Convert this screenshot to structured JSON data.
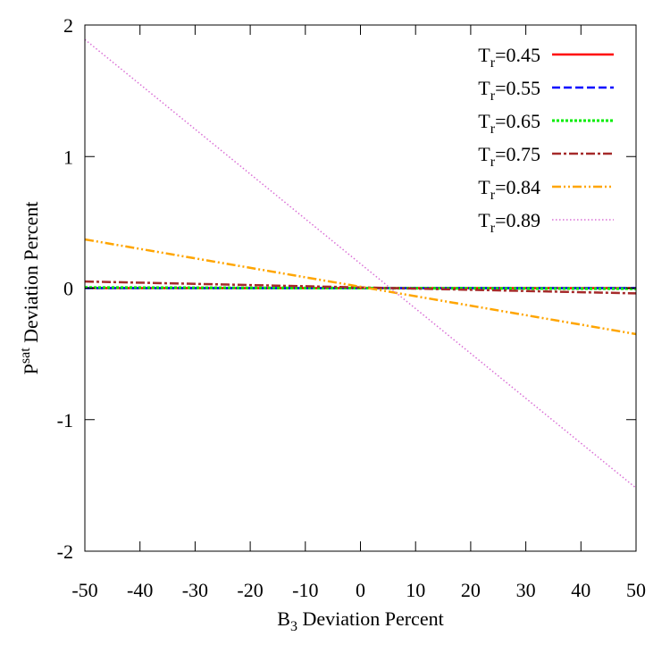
{
  "chart_data": {
    "type": "line",
    "title": "",
    "xlabel": {
      "main": "B",
      "sub": "3",
      "rest": " Deviation Percent"
    },
    "ylabel": {
      "main": "P",
      "sup": "sat",
      "rest": " Deviation Percent"
    },
    "xlim": [
      -50,
      50
    ],
    "ylim": [
      -2,
      2
    ],
    "xticks": [
      -50,
      -40,
      -30,
      -20,
      -10,
      0,
      10,
      20,
      30,
      40,
      50
    ],
    "yticks": [
      -2,
      -1,
      0,
      1,
      2
    ],
    "grid": false,
    "legend_position": "top-right",
    "series": [
      {
        "name": "T_r=0.45",
        "label_main": "T",
        "label_sub": "r",
        "label_rest": "=0.45",
        "color": "#ff0000",
        "dash": "solid",
        "x": [
          -50,
          50
        ],
        "y": [
          0.0,
          0.0
        ]
      },
      {
        "name": "T_r=0.55",
        "label_main": "T",
        "label_sub": "r",
        "label_rest": "=0.55",
        "color": "#0000ff",
        "dash": "dashed",
        "x": [
          -50,
          50
        ],
        "y": [
          0.0,
          0.0
        ]
      },
      {
        "name": "T_r=0.65",
        "label_main": "T",
        "label_sub": "r",
        "label_rest": "=0.65",
        "color": "#00ee00",
        "dash": "dotted",
        "x": [
          -50,
          50
        ],
        "y": [
          0.005,
          -0.005
        ]
      },
      {
        "name": "T_r=0.75",
        "label_main": "T",
        "label_sub": "r",
        "label_rest": "=0.75",
        "color": "#a52a2a",
        "dash": "dashdot",
        "x": [
          -50,
          50
        ],
        "y": [
          0.05,
          -0.04
        ]
      },
      {
        "name": "T_r=0.84",
        "label_main": "T",
        "label_sub": "r",
        "label_rest": "=0.84",
        "color": "#ffa500",
        "dash": "dashdotdot",
        "x": [
          -50,
          50
        ],
        "y": [
          0.37,
          -0.35
        ]
      },
      {
        "name": "T_r=0.89",
        "label_main": "T",
        "label_sub": "r",
        "label_rest": "=0.89",
        "color": "#da70d6",
        "dash": "fine-dotted",
        "x": [
          -50,
          50
        ],
        "y": [
          1.89,
          -1.52
        ]
      }
    ]
  }
}
